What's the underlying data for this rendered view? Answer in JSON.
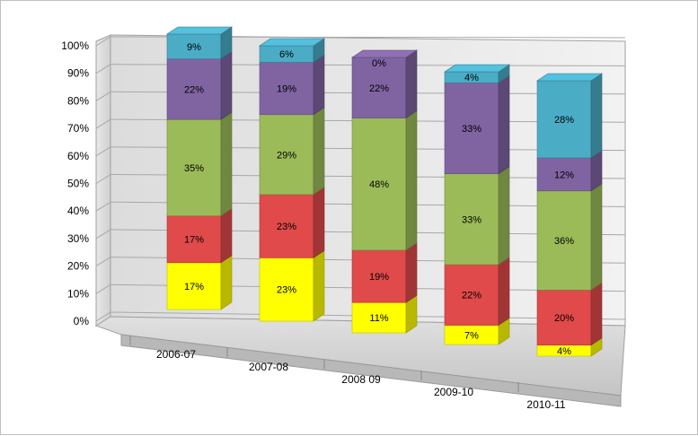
{
  "chart_data": {
    "type": "bar",
    "stacked": true,
    "percent_stacked": true,
    "three_d": true,
    "title": "",
    "xlabel": "",
    "ylabel": "",
    "ylim": [
      0,
      100
    ],
    "y_ticks": [
      "0%",
      "10%",
      "20%",
      "30%",
      "40%",
      "50%",
      "60%",
      "70%",
      "80%",
      "90%",
      "100%"
    ],
    "grid": true,
    "legend": "none",
    "categories": [
      "2006-07",
      "2007-08",
      "2008 09",
      "2009-10",
      "2010-11"
    ],
    "series": [
      {
        "color": "#ffff00",
        "values": [
          17,
          23,
          11,
          7,
          4
        ]
      },
      {
        "color": "#e04a4a",
        "values": [
          17,
          23,
          19,
          22,
          20
        ]
      },
      {
        "color": "#9bbb59",
        "values": [
          35,
          29,
          48,
          33,
          36
        ]
      },
      {
        "color": "#8064a2",
        "values": [
          22,
          19,
          22,
          33,
          12
        ]
      },
      {
        "color": "#4bacc6",
        "values": [
          9,
          6,
          0,
          4,
          28
        ]
      }
    ],
    "value_labels": [
      [
        "17%",
        "23%",
        "11%",
        "7%",
        "4%"
      ],
      [
        "17%",
        "23%",
        "19%",
        "22%",
        "20%"
      ],
      [
        "35%",
        "29%",
        "48%",
        "33%",
        "36%"
      ],
      [
        "22%",
        "19%",
        "22%",
        "33%",
        "12%"
      ],
      [
        "9%",
        "6%",
        "0%",
        "4%",
        "28%"
      ]
    ]
  }
}
